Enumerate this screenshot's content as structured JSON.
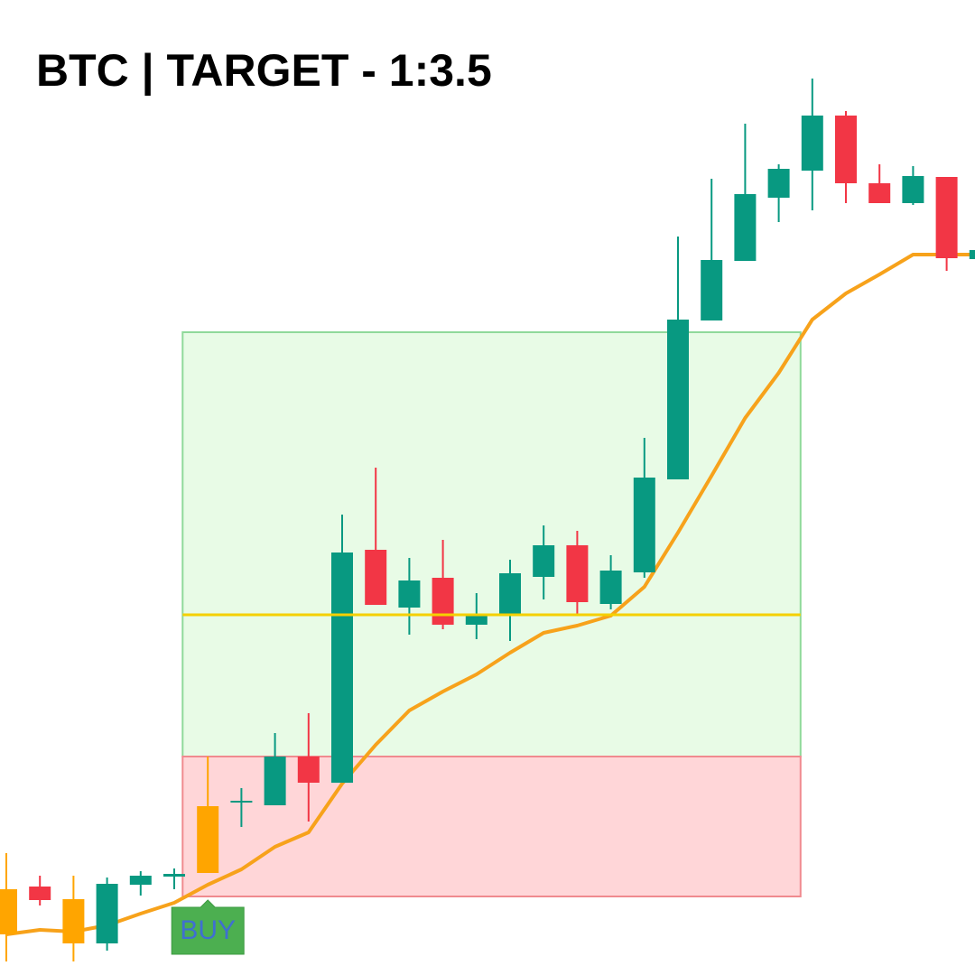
{
  "chart_data": {
    "type": "candlestick",
    "title": "BTC | TARGET - 1:3.5",
    "categories": [
      null,
      null,
      null,
      null,
      null,
      null,
      null,
      null,
      null,
      null,
      null,
      null,
      null,
      null,
      null,
      null,
      null,
      null,
      null,
      null,
      null,
      null,
      null,
      null,
      null,
      null,
      null,
      null,
      null,
      null
    ],
    "open": [
      45,
      98,
      35,
      35,
      100,
      109,
      113,
      191,
      188,
      242,
      213,
      471,
      407,
      440,
      388,
      398,
      441,
      476,
      411,
      446,
      549,
      725,
      791,
      861,
      891,
      952,
      877,
      855,
      884,
      793
    ],
    "high": [
      135,
      110,
      110,
      108,
      115,
      118,
      242,
      207,
      268,
      290,
      510,
      562,
      462,
      482,
      423,
      460,
      498,
      492,
      465,
      595,
      818,
      882,
      943,
      898,
      993,
      957,
      898,
      896,
      884,
      803
    ],
    "low": [
      15,
      77,
      15,
      27,
      88,
      95,
      113,
      164,
      188,
      170,
      213,
      410,
      377,
      383,
      372,
      370,
      416,
      400,
      405,
      440,
      549,
      725,
      791,
      834,
      847,
      855,
      855,
      853,
      780,
      793
    ],
    "close": [
      95,
      83,
      84,
      101,
      110,
      112,
      187,
      193,
      242,
      213,
      468,
      410,
      437,
      388,
      400,
      445,
      476,
      413,
      448,
      551,
      726,
      792,
      865,
      893,
      952,
      877,
      855,
      885,
      794,
      803
    ],
    "up_color": "#089981",
    "down_color": "#f23645",
    "signal_color": "#ffa500",
    "signal_candles": [
      0,
      2,
      6
    ],
    "ma": {
      "color": "#f7a21b",
      "values": [
        45,
        50,
        48,
        55,
        68,
        80,
        100,
        117,
        142,
        158,
        212,
        255,
        293,
        314,
        333,
        357,
        379,
        387,
        398,
        430,
        490,
        553,
        617,
        667,
        726,
        755,
        776,
        798,
        798,
        798
      ]
    },
    "zones": [
      {
        "color": "#e8fbe6",
        "border": "#8fd99a",
        "start": 5.25,
        "end": 23.65,
        "low": 242,
        "high": 712
      },
      {
        "color": "#ffd6d8",
        "border": "#f08a8f",
        "start": 5.25,
        "end": 23.65,
        "low": 87,
        "high": 242
      }
    ],
    "level": {
      "value": 399,
      "color": "#f5d000",
      "start": 5.25,
      "end": 23.65
    },
    "annotations": [
      {
        "text": "BUY",
        "index": 6
      }
    ],
    "ylim": [
      0,
      1080
    ]
  }
}
